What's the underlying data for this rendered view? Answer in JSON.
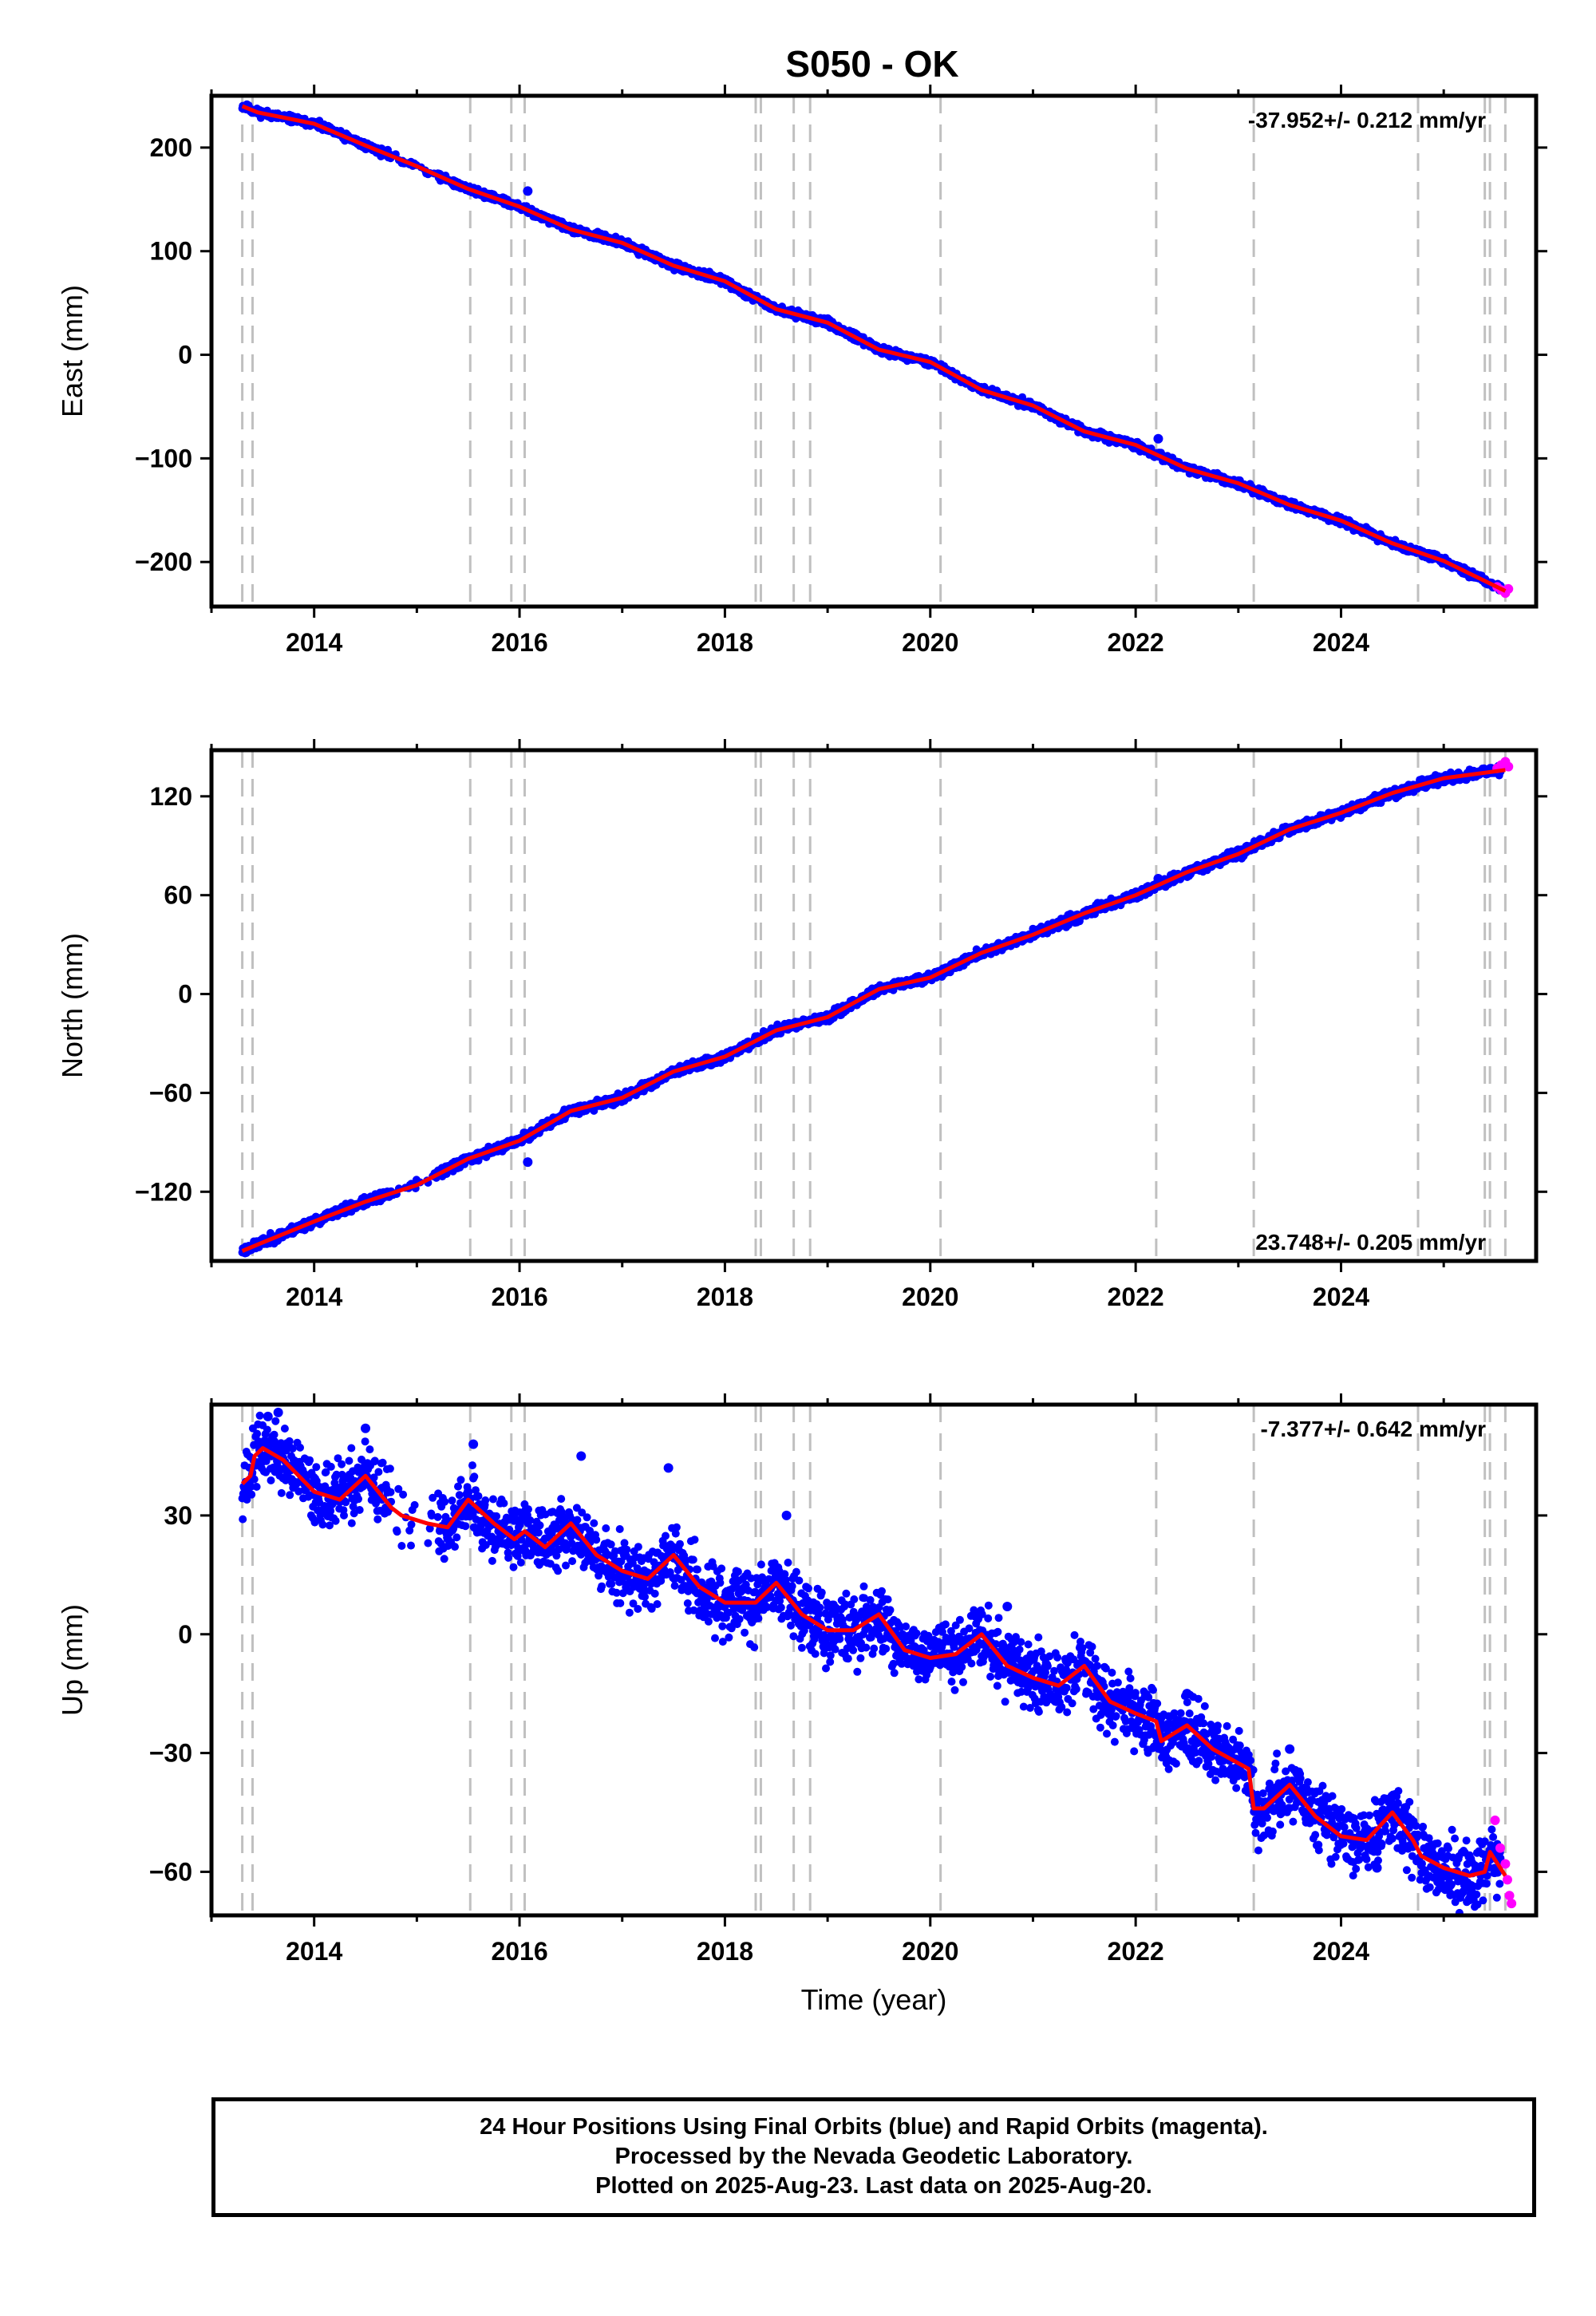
{
  "figure_title": "S050 - OK",
  "colors": {
    "final_points": "#0000ff",
    "rapid_points": "#ff00ff",
    "model": "#ff0000",
    "event_lines": "#c0c0c0",
    "frame": "#000000"
  },
  "footer": {
    "line1": "24 Hour Positions Using Final Orbits (blue) and Rapid Orbits (magenta).",
    "line2": "Processed by the Nevada Geodetic Laboratory.",
    "line3": "Plotted on 2025-Aug-23. Last data on 2025-Aug-20."
  },
  "chart_data": [
    {
      "type": "scatter",
      "component": "East",
      "ylabel": "East (mm)",
      "xlabel": "",
      "xlim": [
        2013.0,
        2025.9
      ],
      "ylim": [
        -243,
        250
      ],
      "yticks": [
        -200,
        -100,
        0,
        100,
        200
      ],
      "yticklabels": [
        "−200",
        "−100",
        "0",
        "100",
        "200"
      ],
      "xticks": [
        2014,
        2016,
        2018,
        2020,
        2022,
        2024
      ],
      "xticklabels": [
        "2014",
        "2016",
        "2018",
        "2020",
        "2022",
        "2024"
      ],
      "rate_text": "-37.952+/- 0.212 mm/yr",
      "rate_position": "top-right",
      "grid": false,
      "trend": {
        "t0": 2013.3,
        "y0": 240,
        "t1": 2025.6,
        "y1": -228
      },
      "model": {
        "x": [
          2013.3,
          2013.45,
          2014.0,
          2014.5,
          2015.0,
          2015.5,
          2016.0,
          2016.5,
          2017.0,
          2017.5,
          2018.0,
          2018.5,
          2019.0,
          2019.5,
          2020.0,
          2020.5,
          2021.0,
          2021.5,
          2022.0,
          2022.5,
          2023.0,
          2023.5,
          2024.0,
          2024.5,
          2025.0,
          2025.6
        ],
        "y": [
          240,
          234,
          223,
          202,
          182,
          160,
          143,
          121,
          108,
          86,
          71,
          44,
          31,
          5,
          -7,
          -34,
          -49,
          -74,
          -87,
          -110,
          -124,
          -145,
          -160,
          -182,
          -199,
          -228
        ]
      },
      "outliers": [
        {
          "x": 2016.08,
          "y": 158
        },
        {
          "x": 2022.22,
          "y": -81
        }
      ],
      "rapid": {
        "x": [
          2025.52,
          2025.56,
          2025.6,
          2025.63
        ],
        "y": [
          -224,
          -227,
          -230,
          -226
        ]
      },
      "event_lines": [
        2013.3,
        2013.4,
        2015.52,
        2015.92,
        2016.05,
        2018.3,
        2018.35,
        2018.67,
        2018.83,
        2020.1,
        2022.2,
        2023.15,
        2024.75,
        2025.4,
        2025.45,
        2025.6
      ]
    },
    {
      "type": "scatter",
      "component": "North",
      "ylabel": "North (mm)",
      "xlabel": "",
      "xlim": [
        2013.0,
        2025.9
      ],
      "ylim": [
        -162,
        148
      ],
      "yticks": [
        -120,
        -60,
        0,
        60,
        120
      ],
      "yticklabels": [
        "−120",
        "−60",
        "0",
        "60",
        "120"
      ],
      "xticks": [
        2014,
        2016,
        2018,
        2020,
        2022,
        2024
      ],
      "xticklabels": [
        "2014",
        "2016",
        "2018",
        "2020",
        "2022",
        "2024"
      ],
      "rate_text": "23.748+/- 0.205 mm/yr",
      "rate_position": "bottom-right",
      "grid": false,
      "trend": {
        "t0": 2013.3,
        "y0": -156,
        "t1": 2025.6,
        "y1": 136
      },
      "model": {
        "x": [
          2013.3,
          2013.45,
          2014.0,
          2014.5,
          2015.0,
          2015.5,
          2016.0,
          2016.5,
          2017.0,
          2017.5,
          2018.0,
          2018.5,
          2019.0,
          2019.5,
          2020.0,
          2020.5,
          2021.0,
          2021.5,
          2022.0,
          2022.5,
          2023.0,
          2023.5,
          2024.0,
          2024.5,
          2025.0,
          2025.6
        ],
        "y": [
          -156,
          -152,
          -138,
          -126,
          -116,
          -100,
          -89,
          -71,
          -63,
          -47,
          -38,
          -22,
          -14,
          3,
          10,
          25,
          36,
          49,
          60,
          74,
          85,
          100,
          110,
          122,
          131,
          136
        ]
      },
      "outliers": [
        {
          "x": 2016.08,
          "y": -102
        },
        {
          "x": 2022.22,
          "y": 70
        }
      ],
      "rapid": {
        "x": [
          2025.52,
          2025.56,
          2025.6,
          2025.63
        ],
        "y": [
          137,
          139,
          141,
          138
        ]
      },
      "event_lines": [
        2013.3,
        2013.4,
        2015.52,
        2015.92,
        2016.05,
        2018.3,
        2018.35,
        2018.67,
        2018.83,
        2020.1,
        2022.2,
        2023.15,
        2024.75,
        2025.4,
        2025.45,
        2025.6
      ]
    },
    {
      "type": "scatter",
      "component": "Up",
      "ylabel": "Up (mm)",
      "xlabel": "Time (year)",
      "xlim": [
        2013.0,
        2025.9
      ],
      "ylim": [
        -71,
        58
      ],
      "yticks": [
        -60,
        -30,
        0,
        30
      ],
      "yticklabels": [
        "−60",
        "−30",
        "0",
        "30"
      ],
      "xticks": [
        2014,
        2016,
        2018,
        2020,
        2022,
        2024
      ],
      "xticklabels": [
        "2014",
        "2016",
        "2018",
        "2020",
        "2022",
        "2024"
      ],
      "rate_text": "-7.377+/- 0.642 mm/yr",
      "rate_position": "top-right",
      "grid": false,
      "model": {
        "x": [
          2013.3,
          2013.38,
          2013.42,
          2013.5,
          2013.7,
          2014.0,
          2014.25,
          2014.5,
          2014.75,
          2014.85,
          2015.1,
          2015.3,
          2015.5,
          2015.75,
          2015.95,
          2016.05,
          2016.25,
          2016.5,
          2016.75,
          2017.0,
          2017.25,
          2017.5,
          2017.75,
          2018.0,
          2018.3,
          2018.5,
          2018.75,
          2019.0,
          2019.25,
          2019.5,
          2019.75,
          2020.0,
          2020.25,
          2020.5,
          2020.75,
          2021.0,
          2021.25,
          2021.5,
          2021.75,
          2022.0,
          2022.2,
          2022.25,
          2022.5,
          2022.75,
          2023.1,
          2023.15,
          2023.25,
          2023.5,
          2023.75,
          2024.0,
          2024.25,
          2024.5,
          2024.7,
          2024.78,
          2025.0,
          2025.25,
          2025.4,
          2025.45,
          2025.6
        ],
        "y": [
          38,
          40,
          45,
          47,
          44,
          36,
          34,
          40,
          32,
          30,
          28,
          27,
          34,
          28,
          24,
          26,
          22,
          28,
          20,
          16,
          14,
          20,
          12,
          8,
          8,
          13,
          5,
          1,
          1,
          5,
          -4,
          -6,
          -5,
          0,
          -8,
          -11,
          -13,
          -8,
          -17,
          -20,
          -22,
          -27,
          -23,
          -29,
          -34,
          -44,
          -44,
          -38,
          -46,
          -51,
          -52,
          -45,
          -52,
          -56,
          -59,
          -61,
          -60,
          -55,
          -61
        ]
      },
      "outliers": [
        {
          "x": 2013.55,
          "y": 55
        },
        {
          "x": 2013.65,
          "y": 56
        },
        {
          "x": 2014.5,
          "y": 52
        },
        {
          "x": 2015.55,
          "y": 48
        },
        {
          "x": 2016.6,
          "y": 45
        },
        {
          "x": 2017.45,
          "y": 42
        },
        {
          "x": 2018.6,
          "y": 30
        },
        {
          "x": 2020.75,
          "y": 7
        },
        {
          "x": 2022.5,
          "y": -15
        },
        {
          "x": 2023.5,
          "y": -29
        },
        {
          "x": 2024.35,
          "y": -59
        },
        {
          "x": 2025.25,
          "y": -67
        }
      ],
      "rapid": {
        "x": [
          2025.5,
          2025.55,
          2025.6,
          2025.62,
          2025.64,
          2025.66
        ],
        "y": [
          -47,
          -54,
          -58,
          -62,
          -66,
          -68
        ]
      },
      "event_lines": [
        2013.3,
        2013.4,
        2015.52,
        2015.92,
        2016.05,
        2018.3,
        2018.35,
        2018.67,
        2018.83,
        2020.1,
        2022.2,
        2023.15,
        2024.75,
        2025.4,
        2025.45,
        2025.6
      ]
    }
  ]
}
